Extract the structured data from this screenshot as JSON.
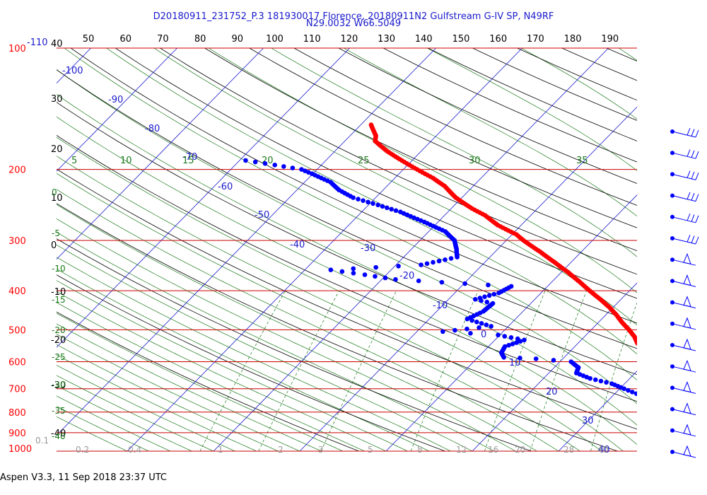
{
  "header": {
    "line1": "D20180911_231752_P.3 181930017 Florence, 20180911N2 Gulfstream G-IV SP, N49RF",
    "line2": "N29.0032 W66.5049"
  },
  "footer": {
    "text": "Aspen V3.3, 11 Sep 2018  23:37 UTC"
  },
  "colors": {
    "temperature": "#ff0000",
    "dewpoint": "#0000ff",
    "isobar": "#cc0000",
    "isotherm": "#1a1acc",
    "dry_adiabat": "#000000",
    "moist_adiabat": "#1a7a1a",
    "mixing_ratio": "#1a7a1a",
    "wind_barb": "#0000ff"
  },
  "chart_data": {
    "type": "skew-t",
    "title": "D20180911_231752_P.3 181930017 Florence, 20180911N2 Gulfstream G-IV SP, N49RF",
    "subtitle": "N29.0032 W66.5049",
    "pressure_ticks": [
      "100",
      "200",
      "300",
      "400",
      "500",
      "600",
      "700",
      "800",
      "900",
      "1000"
    ],
    "pressure_ticks_hpa": [
      100,
      200,
      300,
      400,
      500,
      600,
      700,
      800,
      900,
      1000
    ],
    "pressure_range_hpa": [
      100,
      1000
    ],
    "log_pressure_axis": true,
    "top_axis_ticks": [
      "50",
      "60",
      "70",
      "80",
      "90",
      "100",
      "110",
      "120",
      "130",
      "140",
      "150",
      "160",
      "170",
      "180",
      "190"
    ],
    "top_axis_left_label": "-110",
    "left_axis_ticks": [
      "40",
      "30",
      "20",
      "10",
      "0",
      "-10",
      "-20",
      "-30",
      "-40"
    ],
    "isotherm_labels": [
      "-100",
      "-90",
      "-80",
      "-70",
      "-60",
      "-50",
      "-40",
      "-30",
      "-20",
      "-10",
      "0",
      "10",
      "20",
      "30",
      "40"
    ],
    "moist_adiabat_top_labels": [
      "5",
      "10",
      "15",
      "20",
      "25",
      "30",
      "35"
    ],
    "moist_adiabat_left_labels": [
      "0",
      "-5",
      "-10",
      "-15",
      "-20",
      "-25",
      "-30",
      "-35",
      "-40"
    ],
    "mixing_ratio_labels": [
      "0.1",
      "0.2",
      "0.4",
      "1",
      "2",
      "3",
      "5",
      "8",
      "12",
      "16",
      "20",
      "28",
      "40"
    ],
    "temperature_profile": [
      {
        "p": 1000,
        "t": 27.5
      },
      {
        "p": 980,
        "t": 25.0
      },
      {
        "p": 950,
        "t": 22.2
      },
      {
        "p": 925,
        "t": 20.5
      },
      {
        "p": 900,
        "t": 19.0
      },
      {
        "p": 875,
        "t": 17.8
      },
      {
        "p": 850,
        "t": 16.6
      },
      {
        "p": 825,
        "t": 14.8
      },
      {
        "p": 800,
        "t": 13.3
      },
      {
        "p": 775,
        "t": 11.6
      },
      {
        "p": 750,
        "t": 10.2
      },
      {
        "p": 725,
        "t": 8.9
      },
      {
        "p": 700,
        "t": 7.8
      },
      {
        "p": 680,
        "t": 5.8
      },
      {
        "p": 660,
        "t": 3.5
      },
      {
        "p": 640,
        "t": 1.6
      },
      {
        "p": 620,
        "t": 1.5
      },
      {
        "p": 600,
        "t": 0.5
      },
      {
        "p": 580,
        "t": -0.6
      },
      {
        "p": 560,
        "t": -1.4
      },
      {
        "p": 540,
        "t": -3.1
      },
      {
        "p": 520,
        "t": -4.2
      },
      {
        "p": 500,
        "t": -5.6
      },
      {
        "p": 480,
        "t": -7.2
      },
      {
        "p": 460,
        "t": -8.7
      },
      {
        "p": 440,
        "t": -10.4
      },
      {
        "p": 420,
        "t": -12.4
      },
      {
        "p": 400,
        "t": -14.6
      },
      {
        "p": 380,
        "t": -16.8
      },
      {
        "p": 360,
        "t": -19.2
      },
      {
        "p": 340,
        "t": -21.9
      },
      {
        "p": 320,
        "t": -24.8
      },
      {
        "p": 300,
        "t": -28.0
      },
      {
        "p": 290,
        "t": -29.5
      },
      {
        "p": 275,
        "t": -32.7
      },
      {
        "p": 260,
        "t": -35.3
      },
      {
        "p": 250,
        "t": -37.6
      },
      {
        "p": 235,
        "t": -40.7
      },
      {
        "p": 220,
        "t": -43.3
      },
      {
        "p": 210,
        "t": -45.6
      },
      {
        "p": 200,
        "t": -48.4
      },
      {
        "p": 190,
        "t": -51.2
      },
      {
        "p": 180,
        "t": -54.0
      },
      {
        "p": 170,
        "t": -56.5
      },
      {
        "p": 165,
        "t": -57.0
      },
      {
        "p": 155,
        "t": -58.8
      }
    ],
    "dewpoint_profile": [
      {
        "p": 1000,
        "td": 23.6
      },
      {
        "p": 970,
        "td": 21.6
      },
      {
        "p": 940,
        "td": 19.9
      },
      {
        "p": 910,
        "td": 18.7
      },
      {
        "p": 880,
        "td": 17.2
      },
      {
        "p": 850,
        "td": 15.5
      },
      {
        "p": 820,
        "td": 13.0
      },
      {
        "p": 800,
        "td": 11.3
      },
      {
        "p": 780,
        "td": 9.5
      },
      {
        "p": 760,
        "td": 7.3
      },
      {
        "p": 740,
        "td": 5.2
      },
      {
        "p": 720,
        "td": 2.5
      },
      {
        "p": 700,
        "td": 0.5
      },
      {
        "p": 680,
        "td": -1.5
      },
      {
        "p": 660,
        "td": -4.6
      },
      {
        "p": 640,
        "td": -6.8
      },
      {
        "p": 620,
        "td": -7.2
      },
      {
        "p": 600,
        "td": -8.7
      },
      {
        "p": 590,
        "td": -13.1
      },
      {
        "p": 585,
        "td": -17.0
      },
      {
        "p": 570,
        "td": -17.8
      },
      {
        "p": 550,
        "td": -18.1
      },
      {
        "p": 530,
        "td": -16.6
      },
      {
        "p": 515,
        "td": -20.2
      },
      {
        "p": 505,
        "td": -27.0
      },
      {
        "p": 490,
        "td": -22.0
      },
      {
        "p": 470,
        "td": -25.6
      },
      {
        "p": 450,
        "td": -24.6
      },
      {
        "p": 430,
        "td": -24.4
      },
      {
        "p": 420,
        "td": -26.9
      },
      {
        "p": 405,
        "td": -24.9
      },
      {
        "p": 390,
        "td": -24.2
      },
      {
        "p": 375,
        "td": -38.4
      },
      {
        "p": 365,
        "td": -42.5
      },
      {
        "p": 355,
        "td": -47.0
      },
      {
        "p": 345,
        "td": -37.1
      },
      {
        "p": 330,
        "td": -33.8
      },
      {
        "p": 315,
        "td": -34.8
      },
      {
        "p": 300,
        "td": -36.0
      },
      {
        "p": 285,
        "td": -38.1
      },
      {
        "p": 270,
        "td": -41.6
      },
      {
        "p": 255,
        "td": -45.5
      },
      {
        "p": 245,
        "td": -48.9
      },
      {
        "p": 235,
        "td": -52.6
      },
      {
        "p": 225,
        "td": -55.1
      },
      {
        "p": 215,
        "td": -57.0
      },
      {
        "p": 205,
        "td": -60.1
      },
      {
        "p": 200,
        "td": -61.8
      },
      {
        "p": 195,
        "td": -65.4
      },
      {
        "p": 190,
        "td": -69.3
      }
    ],
    "wind_barbs_count": 16
  }
}
